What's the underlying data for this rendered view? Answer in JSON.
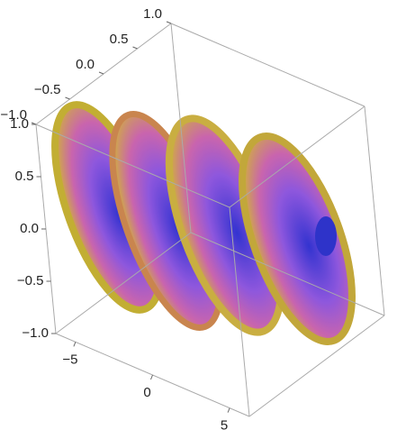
{
  "chart_data": {
    "type": "contour3d",
    "xlim": [
      -1,
      1
    ],
    "ylim": [
      -1,
      1
    ],
    "zlim": [
      -6.28,
      6.28
    ],
    "xticks": [
      {
        "value": -1,
        "label": "−1.0"
      },
      {
        "value": -0.5,
        "label": "−0.5"
      },
      {
        "value": 0,
        "label": "0.0"
      },
      {
        "value": 0.5,
        "label": "0.5"
      },
      {
        "value": 1,
        "label": "1.0"
      }
    ],
    "yticks": [
      {
        "value": 1,
        "label": "1.0"
      },
      {
        "value": 0.5,
        "label": "0.5"
      },
      {
        "value": 0,
        "label": "0.0"
      },
      {
        "value": -0.5,
        "label": "−0.5"
      },
      {
        "value": -1,
        "label": "−1.0"
      }
    ],
    "zticks": [
      {
        "value": -5,
        "label": "−5"
      },
      0,
      5
    ]
  }
}
